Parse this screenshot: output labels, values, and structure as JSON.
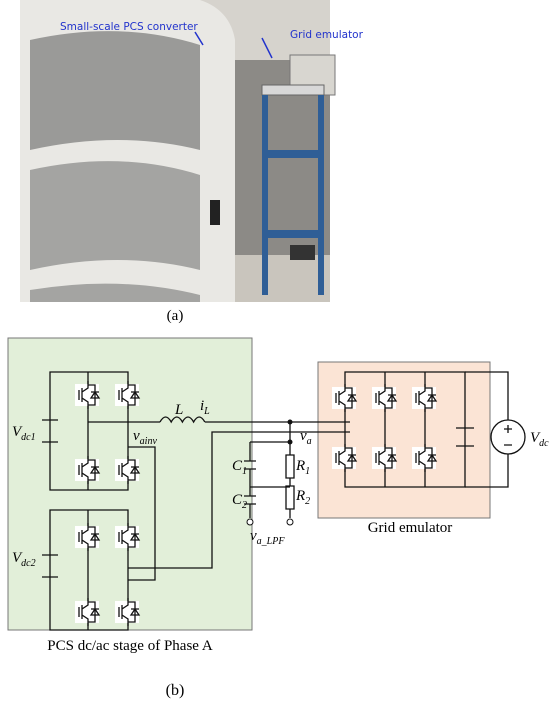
{
  "photo": {
    "annotations": [
      "Small-scale PCS converter",
      "Grid emulator"
    ],
    "caption": "(a)"
  },
  "circuit": {
    "labels": {
      "vdc1": {
        "symbol": "V",
        "subscript": "dc1"
      },
      "inductor": {
        "symbol": "L"
      },
      "current": {
        "symbol": "i",
        "subscript": "L"
      },
      "vainv": {
        "symbol": "v",
        "subscript": "ainv"
      },
      "va": {
        "symbol": "v",
        "subscript": "a"
      },
      "c1": {
        "symbol": "C",
        "subscript": "1"
      },
      "r1": {
        "symbol": "R",
        "subscript": "1"
      },
      "c2": {
        "symbol": "C",
        "subscript": "2"
      },
      "r2": {
        "symbol": "R",
        "subscript": "2"
      },
      "valpf": {
        "symbol": "v",
        "subscript": "a_LPF"
      },
      "vdc2": {
        "symbol": "V",
        "subscript": "dc2"
      },
      "vdc": {
        "symbol": "V",
        "subscript": "dc"
      }
    },
    "grid_emulator_label": "Grid emulator",
    "pcs_label": "PCS dc/ac stage of Phase A",
    "caption": "(b)"
  }
}
